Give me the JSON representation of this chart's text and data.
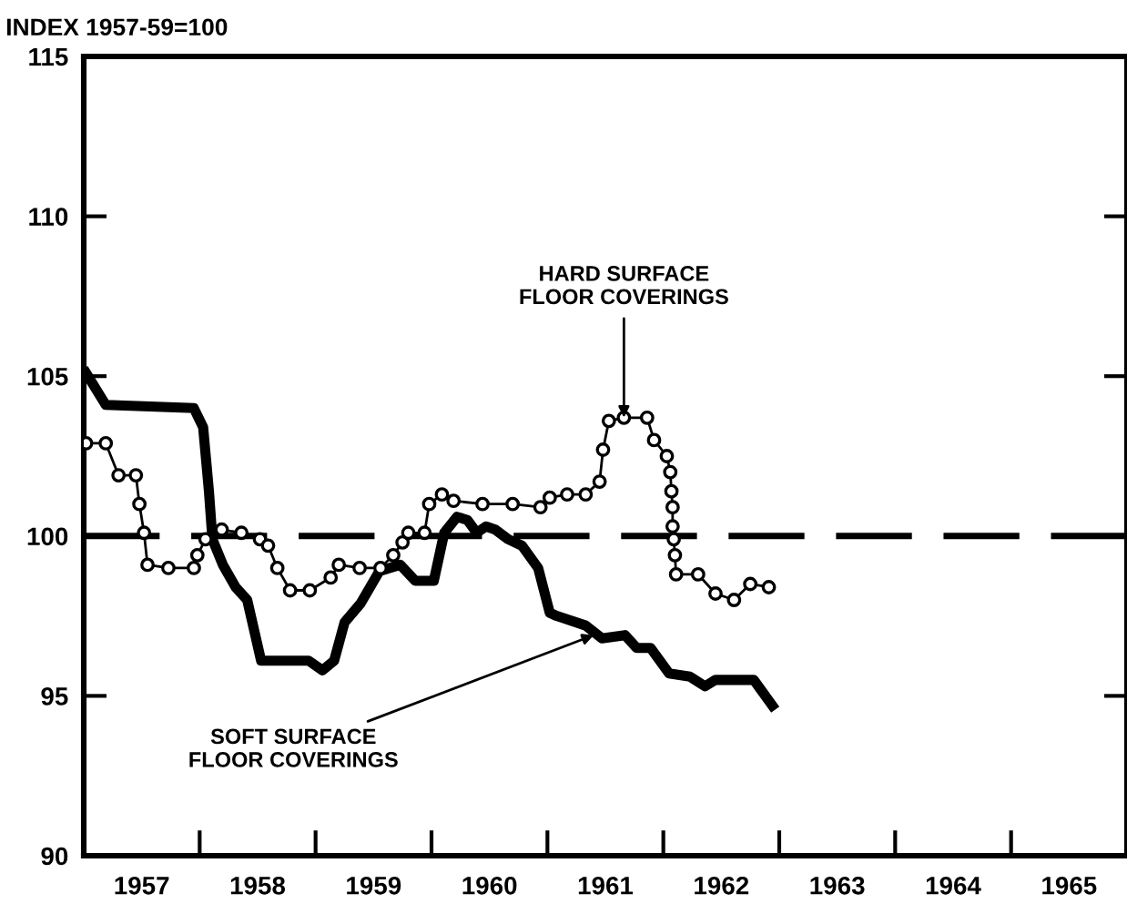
{
  "chart_data": {
    "type": "line",
    "ylabel": "INDEX 1957-59=100",
    "series": [
      {
        "type": "line",
        "color": "#000000",
        "marker": "none",
        "x": [
          1957.02,
          1957.19,
          1957.95,
          1958.03,
          1958.08,
          1958.11,
          1958.2,
          1958.31,
          1958.41,
          1958.53,
          1958.94,
          1959.06,
          1959.16,
          1959.25,
          1959.39,
          1959.55,
          1959.73,
          1959.86,
          1960.02,
          1960.11,
          1960.22,
          1960.31,
          1960.39,
          1960.47,
          1960.55,
          1960.66,
          1960.78,
          1960.92,
          1961.02,
          1961.08,
          1961.33,
          1961.47,
          1961.67,
          1961.77,
          1961.89,
          1962.05,
          1962.23,
          1962.36,
          1962.45,
          1962.78,
          1962.84,
          1962.94
        ],
        "values": [
          105.1,
          104.1,
          104.0,
          103.4,
          101.4,
          99.9,
          99.1,
          98.4,
          98.0,
          96.1,
          96.1,
          95.8,
          96.1,
          97.3,
          97.9,
          98.9,
          99.1,
          98.6,
          98.6,
          100.1,
          100.6,
          100.5,
          100.1,
          100.3,
          100.2,
          99.9,
          99.7,
          99.0,
          97.6,
          97.5,
          97.2,
          96.8,
          96.9,
          96.5,
          96.5,
          95.7,
          95.6,
          95.3,
          95.5,
          95.5,
          95.2,
          94.7
        ]
      },
      {
        "type": "line",
        "color": "#000000",
        "marker": "circle",
        "x": [
          1957.02,
          1957.19,
          1957.3,
          1957.45,
          1957.48,
          1957.52,
          1957.55,
          1957.73,
          1957.95,
          1957.98,
          1958.05,
          1958.19,
          1958.36,
          1958.52,
          1958.59,
          1958.67,
          1958.78,
          1958.95,
          1959.13,
          1959.2,
          1959.38,
          1959.56,
          1959.67,
          1959.75,
          1959.8,
          1959.94,
          1959.98,
          1960.09,
          1960.19,
          1960.44,
          1960.7,
          1960.94,
          1961.02,
          1961.17,
          1961.33,
          1961.45,
          1961.48,
          1961.53,
          1961.66,
          1961.86,
          1961.92,
          1962.03,
          1962.06,
          1962.07,
          1962.08,
          1962.08,
          1962.09,
          1962.1,
          1962.11,
          1962.3,
          1962.45,
          1962.61,
          1962.75,
          1962.91
        ],
        "values": [
          102.9,
          102.9,
          101.9,
          101.9,
          101.0,
          100.1,
          99.1,
          99.0,
          99.0,
          99.4,
          99.9,
          100.2,
          100.1,
          99.9,
          99.7,
          99.0,
          98.3,
          98.3,
          98.7,
          99.1,
          99.0,
          99.0,
          99.4,
          99.8,
          100.1,
          100.1,
          101.0,
          101.3,
          101.1,
          101.0,
          101.0,
          100.9,
          101.2,
          101.3,
          101.3,
          101.7,
          102.7,
          103.6,
          103.7,
          103.7,
          103.0,
          102.5,
          102.0,
          101.4,
          100.9,
          100.3,
          99.9,
          99.4,
          98.8,
          98.8,
          98.2,
          98.0,
          98.5,
          98.4
        ]
      }
    ],
    "xlim": [
      1957,
      1966
    ],
    "ylim": [
      90,
      115
    ],
    "xticks": [
      {
        "value": 1957.5,
        "label": "1957"
      },
      {
        "value": 1958,
        "label": null
      },
      {
        "value": 1958.5,
        "label": "1958"
      },
      {
        "value": 1959,
        "label": null
      },
      {
        "value": 1959.5,
        "label": "1959"
      },
      {
        "value": 1960,
        "label": null
      },
      {
        "value": 1960.5,
        "label": "1960"
      },
      {
        "value": 1961,
        "label": null
      },
      {
        "value": 1961.5,
        "label": "1961"
      },
      {
        "value": 1962,
        "label": null
      },
      {
        "value": 1962.5,
        "label": "1962"
      },
      {
        "value": 1963,
        "label": null
      },
      {
        "value": 1963.5,
        "label": "1963"
      },
      {
        "value": 1964,
        "label": null
      },
      {
        "value": 1964.5,
        "label": "1964"
      },
      {
        "value": 1965,
        "label": null
      },
      {
        "value": 1965.5,
        "label": "1965"
      }
    ],
    "yticks": [
      90,
      95,
      100,
      105,
      110,
      115
    ],
    "ref_lines": [
      {
        "axis": "y",
        "value": 100,
        "color": "#000000",
        "line_style": "dashed"
      }
    ],
    "annotations": [
      {
        "text": "HARD SURFACE\nFLOOR COVERINGS",
        "x": 1961.66,
        "y": 103.7
      },
      {
        "text": "SOFT SURFACE\nFLOOR COVERINGS",
        "x": 1961.4,
        "y": 96.9
      }
    ],
    "grid": false,
    "legend": false
  }
}
